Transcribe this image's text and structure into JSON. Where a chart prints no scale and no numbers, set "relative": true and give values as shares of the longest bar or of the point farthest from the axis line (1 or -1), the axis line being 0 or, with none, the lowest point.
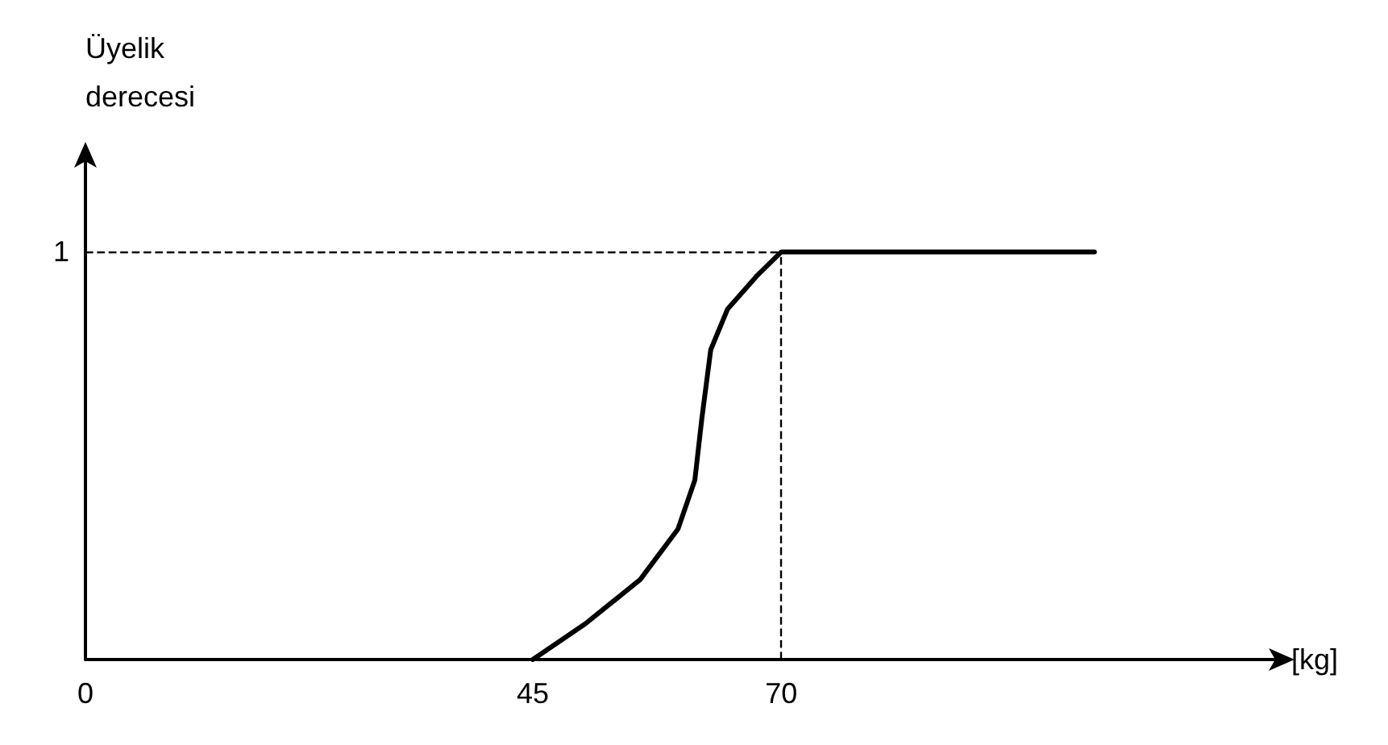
{
  "chart_data": {
    "type": "line",
    "xlabel": "[kg]",
    "ylabel": "Üyelik\nderecesi",
    "x": [
      45,
      50.3,
      55.8,
      59.6,
      61.3,
      62,
      62.9,
      64.6,
      67.5,
      70,
      101.5
    ],
    "series": [
      {
        "color": "#000000",
        "values": [
          0,
          0.088,
          0.196,
          0.32,
          0.44,
          0.59,
          0.76,
          0.86,
          0.94,
          1,
          1
        ]
      }
    ],
    "xlim": [
      0,
      120
    ],
    "xticks": [
      0,
      45,
      70
    ],
    "relative": true,
    "annotations": [
      "1"
    ],
    "ref_lines": [
      {
        "axis": "y",
        "value": 1,
        "color": "#000000",
        "line_style": "dashed"
      },
      {
        "axis": "x",
        "value": 70,
        "color": "#000000",
        "line_style": "dashed"
      }
    ],
    "grid": false,
    "marker": "none",
    "line_style": "solid"
  }
}
